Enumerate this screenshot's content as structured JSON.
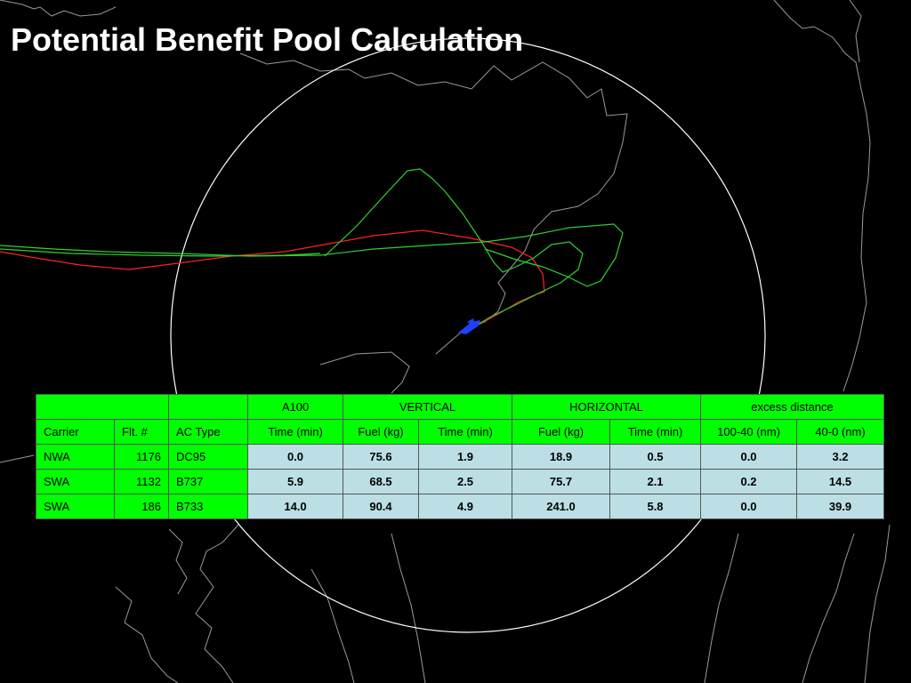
{
  "slide": {
    "title": "Potential Benefit Pool Calculation"
  },
  "colors": {
    "header_bg": "#00ff00",
    "value_bg": "#bbdfe4",
    "track_red": "#ff2020",
    "track_green": "#20c020",
    "map_lines": "#9a9a9a",
    "circle": "#ffffff",
    "aircraft": "#2040ff"
  },
  "map": {
    "icon": "aircraft-icon"
  },
  "table": {
    "group_headers": {
      "a100": "A100",
      "vertical": "VERTICAL",
      "horizontal": "HORIZONTAL",
      "excess": "excess distance"
    },
    "columns": {
      "carrier": "Carrier",
      "flt": "Flt. #",
      "ac_type": "AC Type",
      "a100_time": "Time (min)",
      "v_fuel": "Fuel (kg)",
      "v_time": "Time (min)",
      "h_fuel": "Fuel (kg)",
      "h_time": "Time (min)",
      "ex_100_40": "100-40 (nm)",
      "ex_40_0": "40-0 (nm)"
    },
    "rows": [
      [
        "NWA",
        "1176",
        "DC95",
        "0.0",
        "75.6",
        "1.9",
        "18.9",
        "0.5",
        "0.0",
        "3.2"
      ],
      [
        "SWA",
        "1132",
        "B737",
        "5.9",
        "68.5",
        "2.5",
        "75.7",
        "2.1",
        "0.2",
        "14.5"
      ],
      [
        "SWA",
        "186",
        "B733",
        "14.0",
        "90.4",
        "4.9",
        "241.0",
        "5.8",
        "0.0",
        "39.9"
      ]
    ]
  }
}
